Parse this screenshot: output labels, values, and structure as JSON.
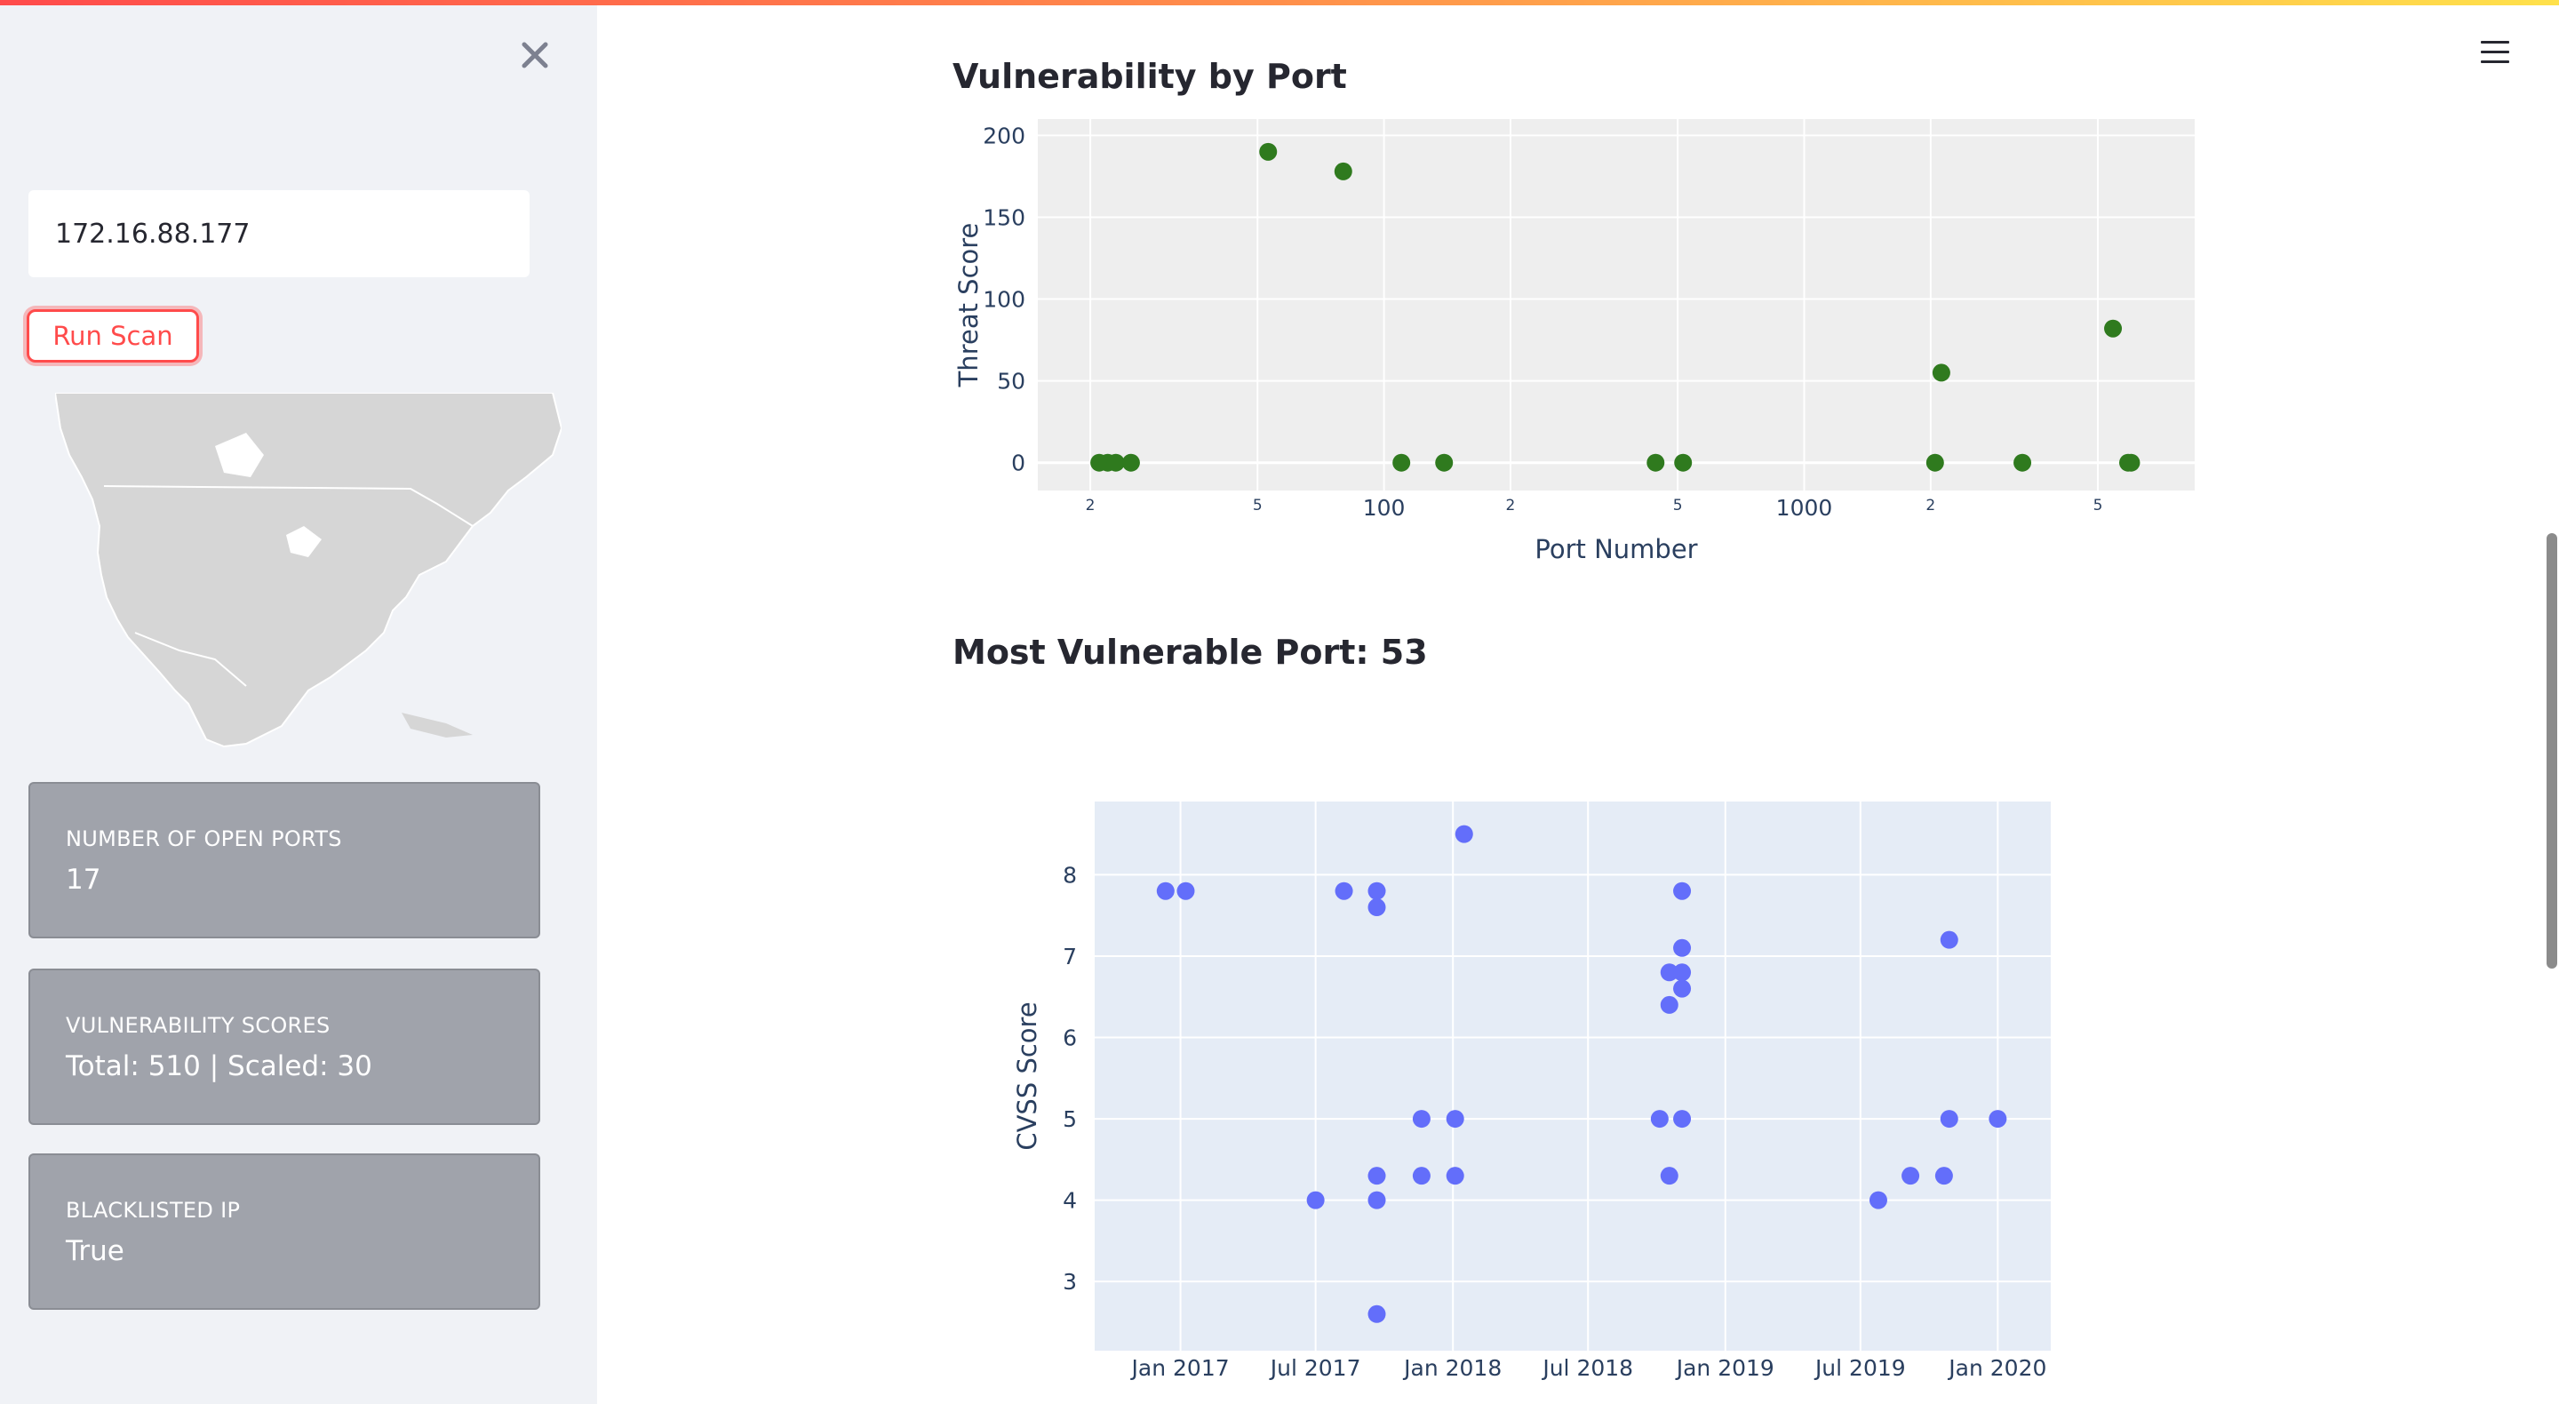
{
  "sidebar": {
    "ip_value": "172.16.88.177",
    "run_label": "Run Scan",
    "metrics": [
      {
        "label": "NUMBER OF OPEN PORTS",
        "value": "17"
      },
      {
        "label": "VULNERABILITY SCORES",
        "value": "Total: 510 | Scaled: 30"
      },
      {
        "label": "BLACKLISTED IP",
        "value": "True"
      }
    ]
  },
  "main": {
    "port_chart_title": "Vulnerability by Port",
    "cvss_chart_title": "Most Vulnerable Port: 53"
  },
  "chart_data": [
    {
      "type": "scatter",
      "title": "",
      "xlabel": "Port Number",
      "ylabel": "Threat Score",
      "xscale": "log",
      "xlim": [
        15,
        8500
      ],
      "ylim": [
        -17,
        210
      ],
      "x_ticks": [
        {
          "value": 20,
          "label": "2"
        },
        {
          "value": 50,
          "label": "5"
        },
        {
          "value": 100,
          "label": "100"
        },
        {
          "value": 200,
          "label": "2"
        },
        {
          "value": 500,
          "label": "5"
        },
        {
          "value": 1000,
          "label": "1000"
        },
        {
          "value": 2000,
          "label": "2"
        },
        {
          "value": 5000,
          "label": "5"
        }
      ],
      "y_ticks": [
        0,
        50,
        100,
        150,
        200
      ],
      "color": "#2f7a1e",
      "background": "#eeeeee",
      "grid": true,
      "points": [
        {
          "x": 21,
          "y": 0
        },
        {
          "x": 22,
          "y": 0
        },
        {
          "x": 23,
          "y": 0
        },
        {
          "x": 25,
          "y": 0
        },
        {
          "x": 53,
          "y": 190
        },
        {
          "x": 80,
          "y": 178
        },
        {
          "x": 110,
          "y": 0
        },
        {
          "x": 139,
          "y": 0
        },
        {
          "x": 443,
          "y": 0
        },
        {
          "x": 515,
          "y": 0
        },
        {
          "x": 2049,
          "y": 0
        },
        {
          "x": 2121,
          "y": 55
        },
        {
          "x": 3306,
          "y": 0
        },
        {
          "x": 5432,
          "y": 82
        },
        {
          "x": 5900,
          "y": 0
        },
        {
          "x": 6000,
          "y": 0
        }
      ]
    },
    {
      "type": "scatter",
      "title": "",
      "xlabel": "",
      "ylabel": "CVSS Score",
      "xaxis": "date",
      "xlim": [
        "2016-09-08",
        "2020-03-12"
      ],
      "ylim": [
        2.15,
        8.9
      ],
      "x_ticks": [
        {
          "value": "2017-01-01",
          "label": "Jan 2017"
        },
        {
          "value": "2017-07-01",
          "label": "Jul 2017"
        },
        {
          "value": "2018-01-01",
          "label": "Jan 2018"
        },
        {
          "value": "2018-07-01",
          "label": "Jul 2018"
        },
        {
          "value": "2019-01-01",
          "label": "Jan 2019"
        },
        {
          "value": "2019-07-01",
          "label": "Jul 2019"
        },
        {
          "value": "2020-01-01",
          "label": "Jan 2020"
        }
      ],
      "y_ticks": [
        3,
        4,
        5,
        6,
        7,
        8
      ],
      "color": "#636efa",
      "background": "#e5ecf6",
      "grid": true,
      "points": [
        {
          "x": "2016-12-12",
          "y": 7.8
        },
        {
          "x": "2017-01-08",
          "y": 7.8
        },
        {
          "x": "2017-07-01",
          "y": 4.0
        },
        {
          "x": "2017-08-08",
          "y": 7.8
        },
        {
          "x": "2017-09-21",
          "y": 7.8
        },
        {
          "x": "2017-09-21",
          "y": 7.6
        },
        {
          "x": "2017-09-21",
          "y": 4.3
        },
        {
          "x": "2017-09-21",
          "y": 4.0
        },
        {
          "x": "2017-09-21",
          "y": 2.6
        },
        {
          "x": "2017-11-20",
          "y": 5.0
        },
        {
          "x": "2017-11-20",
          "y": 4.3
        },
        {
          "x": "2018-01-04",
          "y": 5.0
        },
        {
          "x": "2018-01-04",
          "y": 4.3
        },
        {
          "x": "2018-01-16",
          "y": 8.5
        },
        {
          "x": "2018-10-05",
          "y": 5.0
        },
        {
          "x": "2018-10-18",
          "y": 6.8
        },
        {
          "x": "2018-10-18",
          "y": 6.4
        },
        {
          "x": "2018-10-18",
          "y": 4.3
        },
        {
          "x": "2018-11-04",
          "y": 7.8
        },
        {
          "x": "2018-11-04",
          "y": 7.1
        },
        {
          "x": "2018-11-04",
          "y": 6.8
        },
        {
          "x": "2018-11-04",
          "y": 6.6
        },
        {
          "x": "2018-11-04",
          "y": 5.0
        },
        {
          "x": "2019-07-25",
          "y": 4.0
        },
        {
          "x": "2019-09-06",
          "y": 4.3
        },
        {
          "x": "2019-10-21",
          "y": 4.3
        },
        {
          "x": "2019-10-28",
          "y": 7.2
        },
        {
          "x": "2019-10-28",
          "y": 5.0
        },
        {
          "x": "2020-01-01",
          "y": 5.0
        }
      ]
    }
  ]
}
